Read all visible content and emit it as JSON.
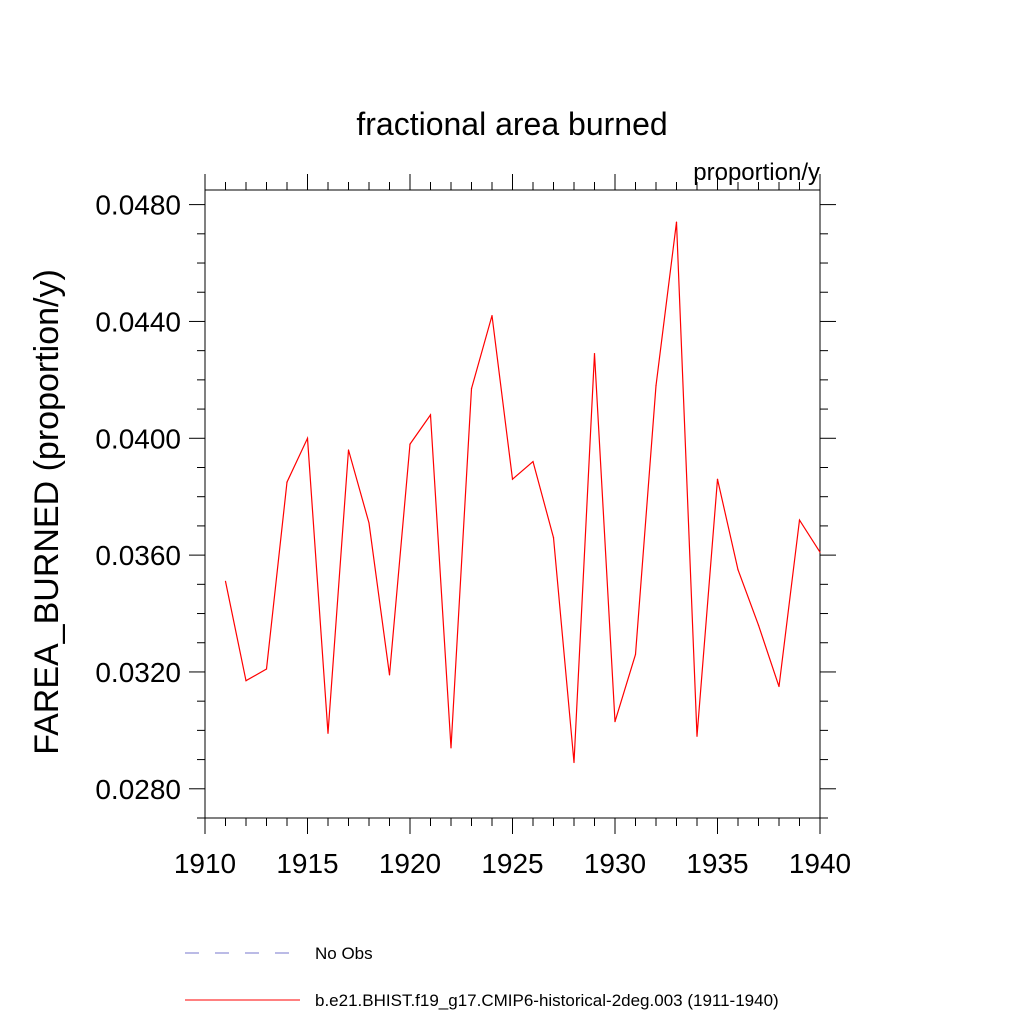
{
  "chart_data": {
    "type": "line",
    "title": "fractional area burned",
    "subtitle": "proportion/y",
    "xlabel": "",
    "ylabel": "FAREA_BURNED  (proportion/y)",
    "xlim": [
      1910,
      1940
    ],
    "ylim": [
      0.027,
      0.0485
    ],
    "xticks": [
      1910,
      1915,
      1920,
      1925,
      1930,
      1935,
      1940
    ],
    "yticks": [
      0.028,
      0.032,
      0.036,
      0.04,
      0.044,
      0.048
    ],
    "ytick_labels": [
      "0.0280",
      "0.0320",
      "0.0360",
      "0.0400",
      "0.0440",
      "0.0480"
    ],
    "grid": false,
    "legend_position": "bottom",
    "series": [
      {
        "name": "No Obs",
        "color": "#7777cc",
        "dash": true,
        "x": [],
        "values": []
      },
      {
        "name": "b.e21.BHIST.f19_g17.CMIP6-historical-2deg.003 (1911-1940)",
        "color": "#ff0000",
        "dash": false,
        "x": [
          1911,
          1912,
          1913,
          1914,
          1915,
          1916,
          1917,
          1918,
          1919,
          1920,
          1921,
          1922,
          1923,
          1924,
          1925,
          1926,
          1927,
          1928,
          1929,
          1930,
          1931,
          1932,
          1933,
          1934,
          1935,
          1936,
          1937,
          1938,
          1939,
          1940
        ],
        "values": [
          0.0351,
          0.0317,
          0.0321,
          0.0385,
          0.04,
          0.0299,
          0.0396,
          0.0371,
          0.0319,
          0.0398,
          0.0408,
          0.0294,
          0.0417,
          0.0442,
          0.0386,
          0.0392,
          0.0366,
          0.0289,
          0.0429,
          0.0303,
          0.0326,
          0.0418,
          0.0474,
          0.0298,
          0.0386,
          0.0355,
          0.0336,
          0.0315,
          0.0372,
          0.0361
        ]
      }
    ]
  }
}
